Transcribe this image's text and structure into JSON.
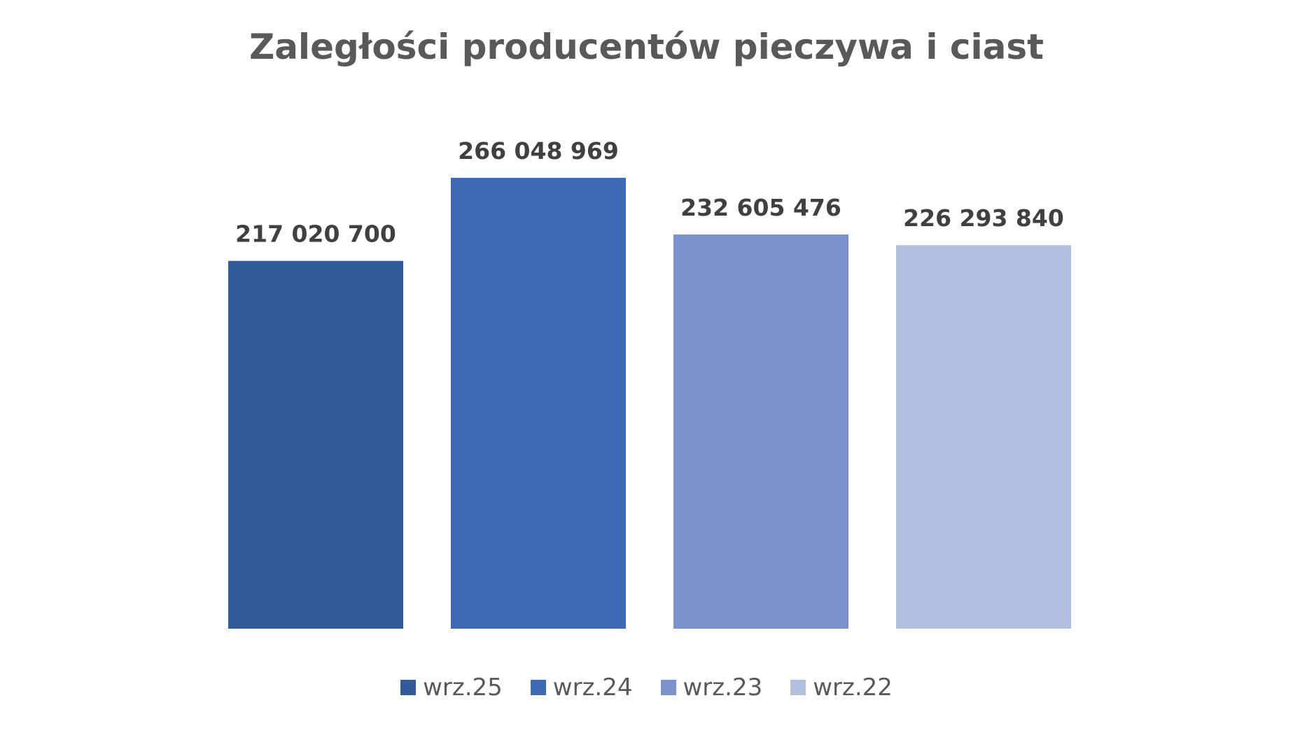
{
  "chart_data": {
    "type": "bar",
    "title": "Zaległości producentów pieczywa i ciast",
    "categories": [
      "wrz.25",
      "wrz.24",
      "wrz.23",
      "wrz.22"
    ],
    "values": [
      217020700,
      266048969,
      232605476,
      226293840
    ],
    "data_labels": [
      "217 020 700",
      "266 048 969",
      "232 605 476",
      "226 293 840"
    ],
    "colors": [
      "#335A9A",
      "#3F6AB7",
      "#7B92CF",
      "#B3BFE0"
    ],
    "ylim": [
      0,
      300000000
    ],
    "grid": false,
    "legend": "bottom"
  }
}
